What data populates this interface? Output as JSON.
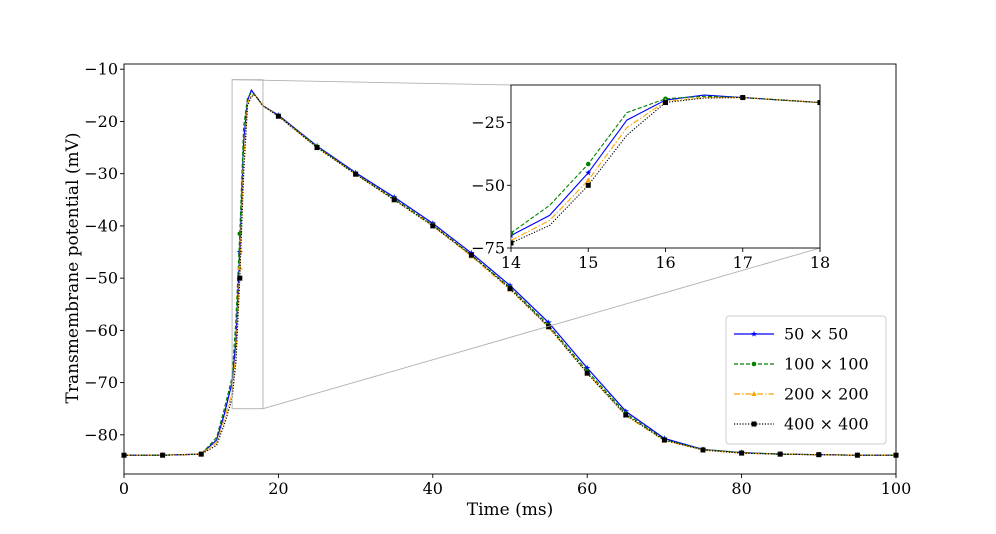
{
  "chart_data": {
    "type": "line",
    "xlabel": "Time (ms)",
    "ylabel": "Transmembrane potential (mV)",
    "xlim": [
      0,
      100
    ],
    "ylim": [
      -87.5,
      -9
    ],
    "xticks": [
      "0",
      "20",
      "40",
      "60",
      "80",
      "100"
    ],
    "yticks": [
      "−80",
      "−70",
      "−60",
      "−50",
      "−40",
      "−30",
      "−20",
      "−10"
    ],
    "legend_position": "lower-right",
    "grid": false,
    "series": [
      {
        "name": "50 × 50",
        "color": "#0000ff",
        "linestyle": "solid",
        "marker": "star",
        "x": [
          0,
          5,
          10,
          12,
          13,
          14,
          14.5,
          15,
          15.5,
          16,
          16.5,
          17,
          18,
          20,
          25,
          30,
          35,
          40,
          45,
          50,
          55,
          60,
          65,
          70,
          75,
          80,
          85,
          90,
          95,
          100
        ],
        "y": [
          -83.9,
          -83.9,
          -83.7,
          -81,
          -76,
          -70,
          -62,
          -45,
          -24,
          -16,
          -14,
          -15,
          -17,
          -18.8,
          -24.7,
          -29.8,
          -34.5,
          -39.5,
          -45.2,
          -51.4,
          -58.5,
          -67.2,
          -75.5,
          -80.7,
          -82.8,
          -83.4,
          -83.7,
          -83.8,
          -83.9,
          -83.9
        ]
      },
      {
        "name": "100 × 100",
        "color": "#008000",
        "linestyle": "dashed",
        "marker": "circle",
        "x": [
          0,
          5,
          10,
          12,
          13,
          14,
          14.5,
          15,
          15.5,
          16,
          16.5,
          17,
          18,
          20,
          25,
          30,
          35,
          40,
          45,
          50,
          55,
          60,
          65,
          70,
          75,
          80,
          85,
          90,
          95,
          100
        ],
        "y": [
          -83.9,
          -83.9,
          -83.7,
          -80.5,
          -75,
          -69,
          -58,
          -41.5,
          -21,
          -15.5,
          -14.5,
          -15,
          -17,
          -18.9,
          -24.8,
          -30,
          -34.8,
          -39.8,
          -45.6,
          -51.8,
          -59,
          -67.8,
          -75.9,
          -80.9,
          -82.8,
          -83.4,
          -83.7,
          -83.8,
          -83.9,
          -83.9
        ]
      },
      {
        "name": "200 × 200",
        "color": "#ffa500",
        "linestyle": "dashdot",
        "marker": "triangle",
        "x": [
          0,
          5,
          10,
          12,
          13,
          14,
          14.5,
          15,
          15.5,
          16,
          16.5,
          17,
          18,
          20,
          25,
          30,
          35,
          40,
          45,
          50,
          55,
          60,
          65,
          70,
          75,
          80,
          85,
          90,
          95,
          100
        ],
        "y": [
          -83.9,
          -83.9,
          -83.7,
          -81.5,
          -77,
          -72,
          -64,
          -48,
          -27,
          -16.5,
          -15,
          -15,
          -17,
          -19,
          -25,
          -30.1,
          -35,
          -40,
          -45.8,
          -52.2,
          -59.4,
          -68.2,
          -76.3,
          -81.1,
          -82.9,
          -83.5,
          -83.7,
          -83.8,
          -83.9,
          -83.9
        ]
      },
      {
        "name": "400 × 400",
        "color": "#000000",
        "linestyle": "dotted",
        "marker": "square",
        "x": [
          0,
          5,
          10,
          12,
          13,
          14,
          14.5,
          15,
          15.5,
          16,
          16.5,
          17,
          18,
          20,
          25,
          30,
          35,
          40,
          45,
          50,
          55,
          60,
          65,
          70,
          75,
          80,
          85,
          90,
          95,
          100
        ],
        "y": [
          -83.9,
          -83.9,
          -83.7,
          -82,
          -78,
          -73,
          -66,
          -50,
          -30,
          -17,
          -15.2,
          -15,
          -17,
          -19,
          -25,
          -30.1,
          -35,
          -40,
          -45.6,
          -52,
          -59.3,
          -68.2,
          -76.2,
          -81,
          -82.9,
          -83.5,
          -83.7,
          -83.8,
          -83.9,
          -83.9
        ]
      }
    ],
    "inset": {
      "type": "line",
      "xlim": [
        14,
        18
      ],
      "ylim": [
        -75,
        -10
      ],
      "xticks": [
        "14",
        "15",
        "16",
        "17",
        "18"
      ],
      "yticks": [
        "−75",
        "−50",
        "−25"
      ],
      "source_region": {
        "x": [
          14,
          18
        ],
        "y": [
          -75,
          -12
        ]
      }
    }
  }
}
